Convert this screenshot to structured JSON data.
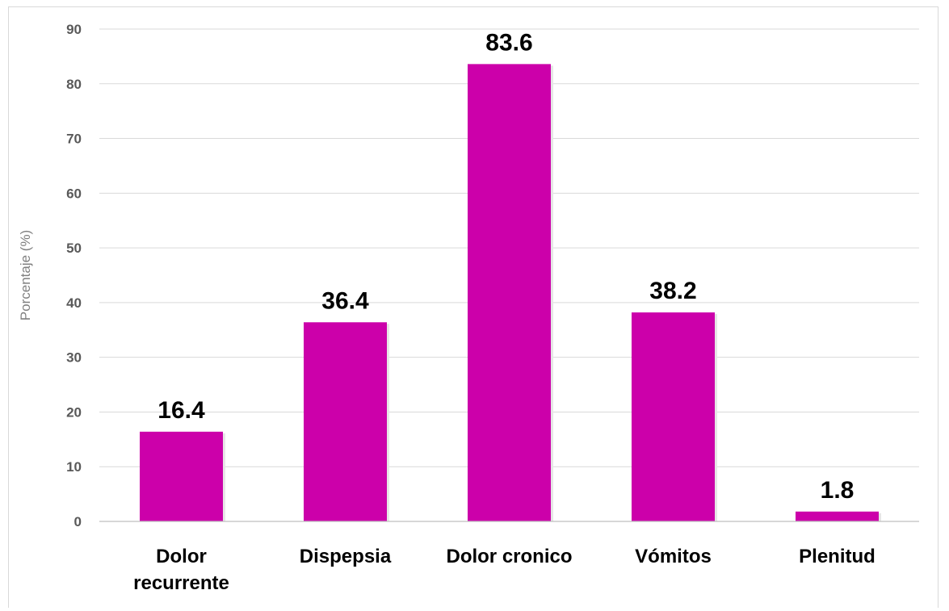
{
  "chart_data": {
    "type": "bar",
    "title": "",
    "xlabel": "",
    "ylabel": "Porcentaje (%)",
    "categories": [
      [
        "Dolor",
        "recurrente"
      ],
      [
        "Dispepsia"
      ],
      [
        "Dolor cronico"
      ],
      [
        "Vómitos"
      ],
      [
        "Plenitud"
      ]
    ],
    "values": [
      16.4,
      36.4,
      83.6,
      38.2,
      1.8
    ],
    "value_labels": [
      "16.4",
      "36.4",
      "83.6",
      "38.2",
      "1.8"
    ],
    "ylim": [
      0,
      90
    ],
    "yticks": [
      0,
      10,
      20,
      30,
      40,
      50,
      60,
      70,
      80,
      90
    ],
    "bar_color": "#cc00aa",
    "grid": true,
    "legend": "none"
  }
}
